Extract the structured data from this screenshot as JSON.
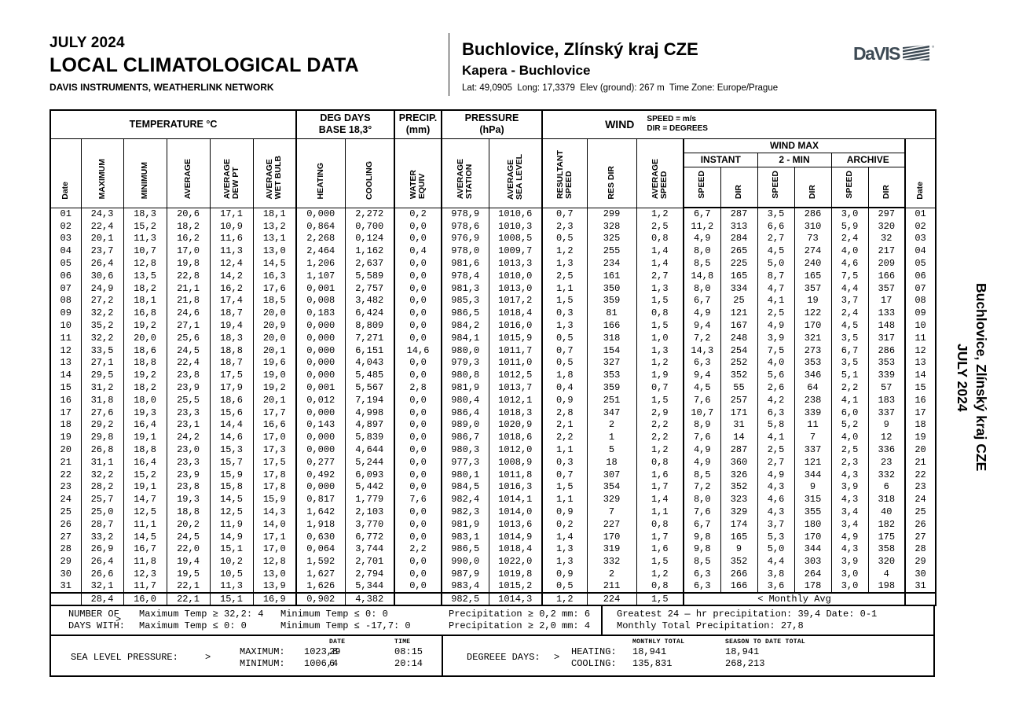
{
  "header": {
    "period": "JULY 2024",
    "title": "LOCAL CLIMATOLOGICAL DATA",
    "subtitle": "DAVIS INSTRUMENTS, WEATHERLINK NETWORK",
    "station_name": "Buchlovice, Zlínský kraj CZE",
    "station_owner": "Kapera - Buchlovice",
    "station_meta": "Lat: 49,0905  Long: 17,3379  Elev (ground): 267 m  Time Zone: Europe/Prague",
    "logo_text": "DaVIS",
    "logo_color": "#3d4a54"
  },
  "side_label": {
    "line1": "JULY 2024",
    "line2": "Buchlovice, Zlínský kraj CZE"
  },
  "table": {
    "groups": {
      "temperature": "TEMPERATURE °C",
      "deg_days": "DEG DAYS\nBASE 18,3°",
      "precip": "PRECIP.\n(mm)",
      "pressure": "PRESSURE\n(hPa)",
      "wind": "WIND",
      "wind_units": "SPEED = m/s\nDIR = DEGREES",
      "wind_max": "WIND MAX",
      "instant": "INSTANT",
      "two_min": "2 - MIN",
      "archive": "ARCHIVE"
    },
    "columns": [
      "Date",
      "MAXIMUM",
      "MINIMUM",
      "AVERAGE",
      "AVERAGE\nDEW PT",
      "AVERAGE\nWET BULB",
      "HEATING",
      "COOLING",
      "WATER\nEQUIV",
      "AVERAGE\nSTATION",
      "AVERAGE\nSEA LEVEL",
      "RESULTANT\nSPEED",
      "RES DIR",
      "AVERAGE\nSPEED",
      "SPEED",
      "DIR",
      "SPEED",
      "DIR",
      "SPEED",
      "DIR",
      "Date"
    ],
    "rows": [
      [
        "01",
        "24,3",
        "18,3",
        "20,6",
        "17,1",
        "18,1",
        "0,000",
        "2,272",
        "0,2",
        "978,9",
        "1010,6",
        "0,7",
        "299",
        "1,2",
        "6,7",
        "287",
        "3,5",
        "286",
        "3,0",
        "297",
        "01"
      ],
      [
        "02",
        "22,4",
        "15,2",
        "18,2",
        "10,9",
        "13,2",
        "0,864",
        "0,700",
        "0,0",
        "978,6",
        "1010,3",
        "2,3",
        "328",
        "2,5",
        "11,2",
        "313",
        "6,6",
        "310",
        "5,9",
        "320",
        "02"
      ],
      [
        "03",
        "20,1",
        "11,3",
        "16,2",
        "11,6",
        "13,1",
        "2,268",
        "0,124",
        "0,0",
        "976,9",
        "1008,5",
        "0,5",
        "325",
        "0,8",
        "4,9",
        "284",
        "2,7",
        "73",
        "2,4",
        "32",
        "03"
      ],
      [
        "04",
        "23,7",
        "10,7",
        "17,0",
        "11,3",
        "13,0",
        "2,464",
        "1,162",
        "0,4",
        "978,0",
        "1009,7",
        "1,2",
        "255",
        "1,4",
        "8,0",
        "265",
        "4,5",
        "274",
        "4,0",
        "217",
        "04"
      ],
      [
        "05",
        "26,4",
        "12,8",
        "19,8",
        "12,4",
        "14,5",
        "1,206",
        "2,637",
        "0,0",
        "981,6",
        "1013,3",
        "1,3",
        "234",
        "1,4",
        "8,5",
        "225",
        "5,0",
        "240",
        "4,6",
        "209",
        "05"
      ],
      [
        "06",
        "30,6",
        "13,5",
        "22,8",
        "14,2",
        "16,3",
        "1,107",
        "5,589",
        "0,0",
        "978,4",
        "1010,0",
        "2,5",
        "161",
        "2,7",
        "14,8",
        "165",
        "8,7",
        "165",
        "7,5",
        "166",
        "06"
      ],
      [
        "07",
        "24,9",
        "18,2",
        "21,1",
        "16,2",
        "17,6",
        "0,001",
        "2,757",
        "0,0",
        "981,3",
        "1013,0",
        "1,1",
        "350",
        "1,3",
        "8,0",
        "334",
        "4,7",
        "357",
        "4,4",
        "357",
        "07"
      ],
      [
        "08",
        "27,2",
        "18,1",
        "21,8",
        "17,4",
        "18,5",
        "0,008",
        "3,482",
        "0,0",
        "985,3",
        "1017,2",
        "1,5",
        "359",
        "1,5",
        "6,7",
        "25",
        "4,1",
        "19",
        "3,7",
        "17",
        "08"
      ],
      [
        "09",
        "32,2",
        "16,8",
        "24,6",
        "18,7",
        "20,0",
        "0,183",
        "6,424",
        "0,0",
        "986,5",
        "1018,4",
        "0,3",
        "81",
        "0,8",
        "4,9",
        "121",
        "2,5",
        "122",
        "2,4",
        "133",
        "09"
      ],
      [
        "10",
        "35,2",
        "19,2",
        "27,1",
        "19,4",
        "20,9",
        "0,000",
        "8,809",
        "0,0",
        "984,2",
        "1016,0",
        "1,3",
        "166",
        "1,5",
        "9,4",
        "167",
        "4,9",
        "170",
        "4,5",
        "148",
        "10"
      ],
      [
        "11",
        "32,2",
        "20,0",
        "25,6",
        "18,3",
        "20,0",
        "0,000",
        "7,271",
        "0,0",
        "984,1",
        "1015,9",
        "0,5",
        "318",
        "1,0",
        "7,2",
        "248",
        "3,9",
        "321",
        "3,5",
        "317",
        "11"
      ],
      [
        "12",
        "33,5",
        "18,6",
        "24,5",
        "18,8",
        "20,1",
        "0,000",
        "6,151",
        "14,6",
        "980,0",
        "1011,7",
        "0,7",
        "154",
        "1,3",
        "14,3",
        "254",
        "7,5",
        "273",
        "6,7",
        "286",
        "12"
      ],
      [
        "13",
        "27,1",
        "18,8",
        "22,4",
        "18,7",
        "19,6",
        "0,000",
        "4,043",
        "0,0",
        "979,3",
        "1011,0",
        "0,5",
        "327",
        "1,2",
        "6,3",
        "252",
        "4,0",
        "353",
        "3,5",
        "353",
        "13"
      ],
      [
        "14",
        "29,5",
        "19,2",
        "23,8",
        "17,5",
        "19,0",
        "0,000",
        "5,485",
        "0,0",
        "980,8",
        "1012,5",
        "1,8",
        "353",
        "1,9",
        "9,4",
        "352",
        "5,6",
        "346",
        "5,1",
        "339",
        "14"
      ],
      [
        "15",
        "31,2",
        "18,2",
        "23,9",
        "17,9",
        "19,2",
        "0,001",
        "5,567",
        "2,8",
        "981,9",
        "1013,7",
        "0,4",
        "359",
        "0,7",
        "4,5",
        "55",
        "2,6",
        "64",
        "2,2",
        "57",
        "15"
      ],
      [
        "16",
        "31,8",
        "18,0",
        "25,5",
        "18,6",
        "20,1",
        "0,012",
        "7,194",
        "0,0",
        "980,4",
        "1012,1",
        "0,9",
        "251",
        "1,5",
        "7,6",
        "257",
        "4,2",
        "238",
        "4,1",
        "183",
        "16"
      ],
      [
        "17",
        "27,6",
        "19,3",
        "23,3",
        "15,6",
        "17,7",
        "0,000",
        "4,998",
        "0,0",
        "986,4",
        "1018,3",
        "2,8",
        "347",
        "2,9",
        "10,7",
        "171",
        "6,3",
        "339",
        "6,0",
        "337",
        "17"
      ],
      [
        "18",
        "29,2",
        "16,4",
        "23,1",
        "14,4",
        "16,6",
        "0,143",
        "4,897",
        "0,0",
        "989,0",
        "1020,9",
        "2,1",
        "2",
        "2,2",
        "8,9",
        "31",
        "5,8",
        "11",
        "5,2",
        "9",
        "18"
      ],
      [
        "19",
        "29,8",
        "19,1",
        "24,2",
        "14,6",
        "17,0",
        "0,000",
        "5,839",
        "0,0",
        "986,7",
        "1018,6",
        "2,2",
        "1",
        "2,2",
        "7,6",
        "14",
        "4,1",
        "7",
        "4,0",
        "12",
        "19"
      ],
      [
        "20",
        "26,8",
        "18,8",
        "23,0",
        "15,3",
        "17,3",
        "0,000",
        "4,644",
        "0,0",
        "980,3",
        "1012,0",
        "1,1",
        "5",
        "1,2",
        "4,9",
        "287",
        "2,5",
        "337",
        "2,5",
        "336",
        "20"
      ],
      [
        "21",
        "31,1",
        "16,4",
        "23,3",
        "15,7",
        "17,5",
        "0,277",
        "5,244",
        "0,0",
        "977,3",
        "1008,9",
        "0,3",
        "18",
        "0,8",
        "4,9",
        "360",
        "2,7",
        "121",
        "2,3",
        "23",
        "21"
      ],
      [
        "22",
        "32,2",
        "15,2",
        "23,9",
        "15,9",
        "17,8",
        "0,492",
        "6,093",
        "0,0",
        "980,1",
        "1011,8",
        "0,7",
        "307",
        "1,6",
        "8,5",
        "326",
        "4,9",
        "344",
        "4,3",
        "332",
        "22"
      ],
      [
        "23",
        "28,2",
        "19,1",
        "23,8",
        "15,8",
        "17,8",
        "0,000",
        "5,442",
        "0,0",
        "984,5",
        "1016,3",
        "1,5",
        "354",
        "1,7",
        "7,2",
        "352",
        "4,3",
        "9",
        "3,9",
        "6",
        "23"
      ],
      [
        "24",
        "25,7",
        "14,7",
        "19,3",
        "14,5",
        "15,9",
        "0,817",
        "1,779",
        "7,6",
        "982,4",
        "1014,1",
        "1,1",
        "329",
        "1,4",
        "8,0",
        "323",
        "4,6",
        "315",
        "4,3",
        "318",
        "24"
      ],
      [
        "25",
        "25,0",
        "12,5",
        "18,8",
        "12,5",
        "14,3",
        "1,642",
        "2,103",
        "0,0",
        "982,3",
        "1014,0",
        "0,9",
        "7",
        "1,1",
        "7,6",
        "329",
        "4,3",
        "355",
        "3,4",
        "40",
        "25"
      ],
      [
        "26",
        "28,7",
        "11,1",
        "20,2",
        "11,9",
        "14,0",
        "1,918",
        "3,770",
        "0,0",
        "981,9",
        "1013,6",
        "0,2",
        "227",
        "0,8",
        "6,7",
        "174",
        "3,7",
        "180",
        "3,4",
        "182",
        "26"
      ],
      [
        "27",
        "33,2",
        "14,5",
        "24,5",
        "14,9",
        "17,1",
        "0,630",
        "6,772",
        "0,0",
        "983,1",
        "1014,9",
        "1,4",
        "170",
        "1,7",
        "9,8",
        "165",
        "5,3",
        "170",
        "4,9",
        "175",
        "27"
      ],
      [
        "28",
        "26,9",
        "16,7",
        "22,0",
        "15,1",
        "17,0",
        "0,064",
        "3,744",
        "2,2",
        "986,5",
        "1018,4",
        "1,3",
        "319",
        "1,6",
        "9,8",
        "9",
        "5,0",
        "344",
        "4,3",
        "358",
        "28"
      ],
      [
        "29",
        "26,4",
        "11,8",
        "19,4",
        "10,2",
        "12,8",
        "1,592",
        "2,701",
        "0,0",
        "990,0",
        "1022,0",
        "1,3",
        "332",
        "1,5",
        "8,5",
        "352",
        "4,4",
        "303",
        "3,9",
        "320",
        "29"
      ],
      [
        "30",
        "26,6",
        "12,3",
        "19,5",
        "10,5",
        "13,0",
        "1,627",
        "2,794",
        "0,0",
        "987,9",
        "1019,8",
        "0,9",
        "2",
        "1,2",
        "6,3",
        "266",
        "3,8",
        "264",
        "3,0",
        "4",
        "30"
      ],
      [
        "31",
        "32,1",
        "11,7",
        "22,1",
        "11,3",
        "13,9",
        "1,626",
        "5,344",
        "0,0",
        "983,4",
        "1015,2",
        "0,5",
        "211",
        "0,8",
        "6,3",
        "166",
        "3,6",
        "178",
        "3,0",
        "198",
        "31"
      ]
    ],
    "monthly_avg": {
      "values": [
        "",
        "28,4",
        "16,0",
        "22,1",
        "15,1",
        "16,9",
        "0,902",
        "4,382",
        "",
        "982,5",
        "1014,3",
        "1,2",
        "224",
        "1,5"
      ],
      "label": "< Monthly Avg"
    }
  },
  "summary": {
    "days_with": {
      "label": "NUMBER OF\nDAYS WITH:",
      "arrow": ">",
      "col1": "Maximum Temp ≥ 32,2: 4\nMaximum Temp ≤ 0: 0",
      "col2": "Minimum Temp ≤ 0: 0\nMinimum Temp ≤ -17,7: 0",
      "col3": "Precipitation ≥ 0,2 mm: 6\nPrecipitation ≥ 2,0 mm: 4",
      "right": "Greatest 24 — hr precipitation: 39,4 Date: 0-1\nMonthly Total Precipitation: 27,8"
    },
    "pressure_extremes": {
      "label": "SEA LEVEL PRESSURE:",
      "arrow": ">",
      "date_header": "DATE",
      "time_header": "TIME",
      "max_label": "MAXIMUM:",
      "max_value": "1023,8",
      "max_date": "29",
      "max_time": "08:15",
      "min_label": "MINIMUM:",
      "min_value": "1006,4",
      "min_date": "6",
      "min_time": "20:14"
    },
    "degree_days": {
      "label": "DEGREEE DAYS:",
      "arrow": ">",
      "monthly_header": "MONTHLY TOTAL",
      "season_header": "SEASON TO DATE TOTAL",
      "heating_label": "HEATING:",
      "heating_monthly": "18,941",
      "heating_season": "18,941",
      "cooling_label": "COOLING:",
      "cooling_monthly": "135,831",
      "cooling_season": "268,213"
    }
  }
}
